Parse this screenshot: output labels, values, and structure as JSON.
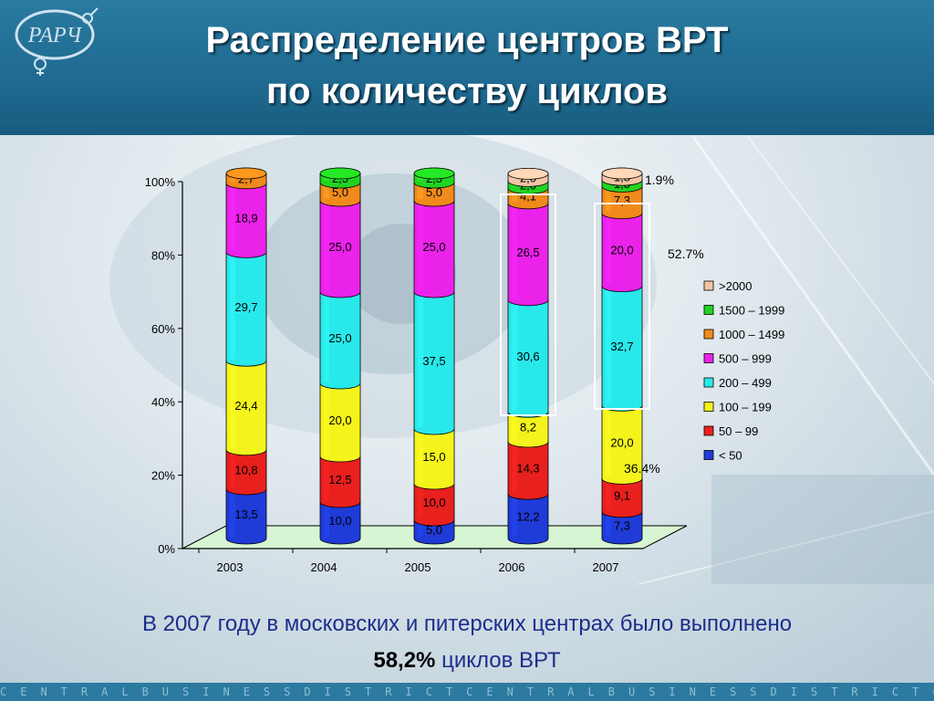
{
  "slide": {
    "title_line1": "Распределение центров ВРТ",
    "title_line2": "по количеству циклов",
    "logo_text": "РАРЧ",
    "caption_line1": "В 2007 году в московских и питерских центрах было выполнено",
    "caption_value": "58,2%",
    "caption_rest": " циклов ВРТ",
    "footer_text": "CENTRALBUSINESSDISTRICTCENTRALBUSINESSDISTRICTCENTRA"
  },
  "chart_data": {
    "type": "bar",
    "stacked": true,
    "categories": [
      "2003",
      "2004",
      "2005",
      "2006",
      "2007"
    ],
    "y_ticks": [
      "0%",
      "20%",
      "40%",
      "60%",
      "80%",
      "100%"
    ],
    "ylim": [
      0,
      100
    ],
    "legend_position": "right",
    "series": [
      {
        "name": "< 50",
        "color": "#1f3bd8",
        "values": [
          13.5,
          10.0,
          5.0,
          12.2,
          7.3
        ],
        "labels": [
          "13,5",
          "10,0",
          "5,0",
          "12,2",
          "7,3"
        ]
      },
      {
        "name": "50 – 99",
        "color": "#e8201e",
        "values": [
          10.8,
          12.5,
          10.0,
          14.3,
          9.1
        ],
        "labels": [
          "10,8",
          "12,5",
          "10,0",
          "14,3",
          "9,1"
        ]
      },
      {
        "name": "100 – 199",
        "color": "#f4f41c",
        "values": [
          24.4,
          20.0,
          15.0,
          8.2,
          20.0
        ],
        "labels": [
          "24,4",
          "20,0",
          "15,0",
          "8,2",
          "20,0"
        ]
      },
      {
        "name": "200 – 499",
        "color": "#29e8ea",
        "values": [
          29.7,
          25.0,
          37.5,
          30.6,
          32.7
        ],
        "labels": [
          "29,7",
          "25,0",
          "37,5",
          "30,6",
          "32,7"
        ]
      },
      {
        "name": "500 – 999",
        "color": "#ea22ea",
        "values": [
          18.9,
          25.0,
          25.0,
          26.5,
          20.0
        ],
        "labels": [
          "18,9",
          "25,0",
          "25,0",
          "26,5",
          "20,0"
        ]
      },
      {
        "name": "1000 – 1499",
        "color": "#f08a1c",
        "values": [
          2.7,
          5.0,
          5.0,
          4.1,
          7.3
        ],
        "labels": [
          "2,7",
          "5,0",
          "5,0",
          "4,1",
          "7,3"
        ]
      },
      {
        "name": "1500 – 1999",
        "color": "#22d422",
        "values": [
          0,
          2.5,
          2.5,
          2.0,
          1.8
        ],
        "labels": [
          "",
          "2,5",
          "2,5",
          "2,0",
          "1,8"
        ]
      },
      {
        "name": ">2000",
        "color": "#f2c4a6",
        "values": [
          0,
          0,
          0,
          2.0,
          1.8
        ],
        "labels": [
          "",
          "",
          "",
          "2,0",
          "1,8"
        ]
      }
    ],
    "annotations": [
      {
        "text": "1.9%"
      },
      {
        "text": "52.7%"
      },
      {
        "text": "36.4%"
      }
    ]
  }
}
